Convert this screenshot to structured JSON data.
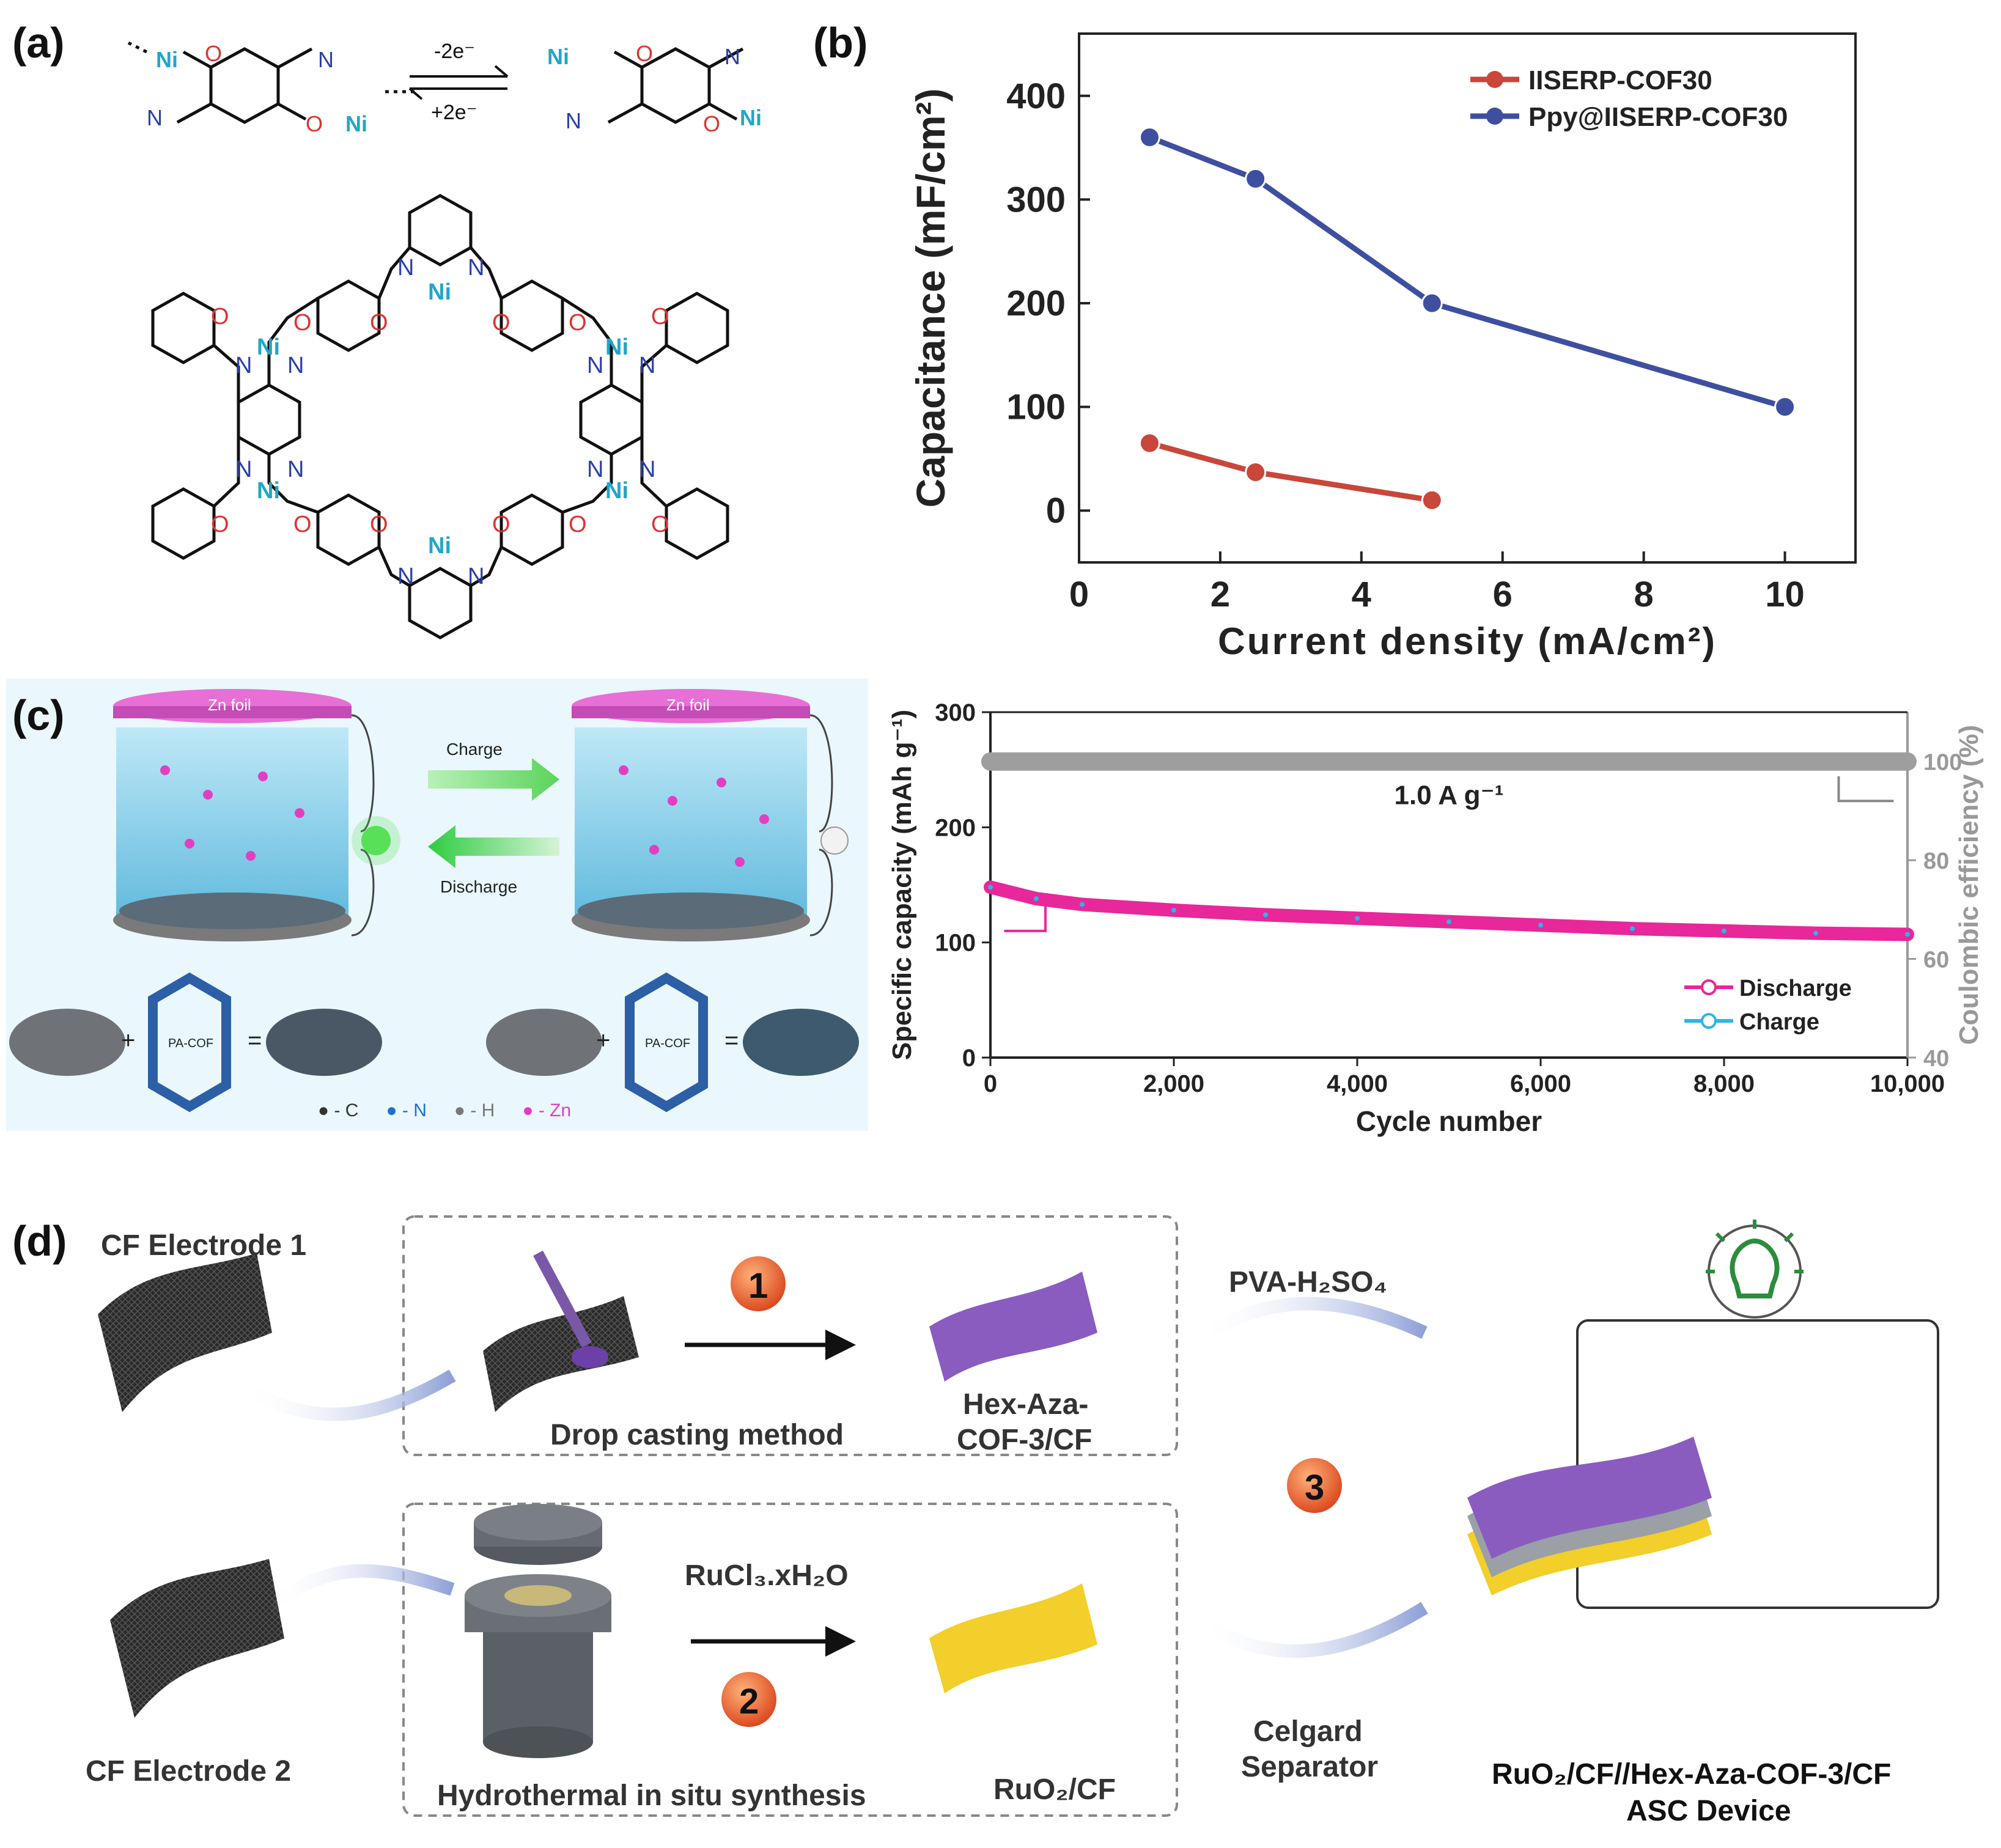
{
  "panels": {
    "a": {
      "label": "(a)",
      "reaction": {
        "forward": "-2e⁻",
        "backward": "+2e⁻"
      },
      "atoms": {
        "ni": "Ni",
        "o": "O",
        "n": "N"
      }
    },
    "b": {
      "label": "(b)"
    },
    "c": {
      "label": "(c)",
      "schematic": {
        "zn_foil": "Zn foil",
        "charge": "Charge",
        "discharge": "Discharge",
        "pa_cof": "PA-COF",
        "legend": [
          "● - C",
          "● - N",
          "● - H",
          "● - Zn"
        ],
        "legend_colors": [
          "#333333",
          "#1f6fd0",
          "#b0b0b0",
          "#e040c0"
        ]
      }
    },
    "d": {
      "label": "(d)",
      "cf_electrode_1": "CF Electrode 1",
      "cf_electrode_2": "CF Electrode 2",
      "step1": "1",
      "step2": "2",
      "step3": "3",
      "drop_casting": "Drop casting method",
      "hydrothermal": "Hydrothermal in situ synthesis",
      "hex_line1": "Hex-Aza-",
      "hex_line2": "COF-3/CF",
      "rucl3": "RuCl₃.xH₂O",
      "ruo2_cf": "RuO₂/CF",
      "pva": "PVA-H₂SO₄",
      "celgard_line1": "Celgard",
      "celgard_line2": "Separator",
      "device_line1": "RuO₂/CF//Hex-Aza-COF-3/CF",
      "device_line2": "ASC Device"
    }
  },
  "chart_data": [
    {
      "type": "line",
      "panel": "b",
      "xlabel": "Current density (mA/cm²)",
      "ylabel": "Capacitance (mF/cm²)",
      "xlim": [
        0,
        11
      ],
      "ylim": [
        -50,
        460
      ],
      "xticks": [
        0,
        2,
        4,
        6,
        8,
        10
      ],
      "yticks": [
        0,
        100,
        200,
        300,
        400
      ],
      "legend_position": "top-right",
      "series": [
        {
          "name": "IISERP-COF30",
          "color": "#c8473a",
          "x": [
            1,
            2.5,
            5
          ],
          "y": [
            65,
            37,
            10
          ]
        },
        {
          "name": "Ppy@IISERP-COF30",
          "color": "#3f4fa0",
          "x": [
            1,
            2.5,
            5,
            10
          ],
          "y": [
            360,
            320,
            200,
            100
          ]
        }
      ]
    },
    {
      "type": "scatter",
      "panel": "c",
      "xlabel": "Cycle number",
      "ylabel": "Specific capacity (mAh g⁻¹)",
      "y2label": "Coulombic efficiency (%)",
      "xlim": [
        0,
        10000
      ],
      "ylim": [
        0,
        300
      ],
      "y2lim": [
        40,
        110
      ],
      "xticks": [
        0,
        2000,
        4000,
        6000,
        8000,
        10000
      ],
      "xtick_labels": [
        "0",
        "2,000",
        "4,000",
        "6,000",
        "8,000",
        "10,000"
      ],
      "yticks": [
        0,
        100,
        200,
        300
      ],
      "y2ticks": [
        40,
        60,
        80,
        100
      ],
      "annotation": "1.0 A g⁻¹",
      "legend_position": "bottom-right",
      "series": [
        {
          "name": "Discharge",
          "color": "#e8279a",
          "x": [
            0,
            500,
            1000,
            2000,
            3000,
            4000,
            5000,
            6000,
            7000,
            8000,
            9000,
            10000
          ],
          "y": [
            148,
            138,
            133,
            128,
            124,
            121,
            118,
            115,
            112,
            110,
            108,
            107
          ]
        },
        {
          "name": "Charge",
          "color": "#2ab5e8",
          "x": [
            0,
            500,
            1000,
            2000,
            3000,
            4000,
            5000,
            6000,
            7000,
            8000,
            9000,
            10000
          ],
          "y": [
            148,
            138,
            133,
            128,
            124,
            121,
            118,
            115,
            112,
            110,
            108,
            107
          ]
        },
        {
          "name": "Coulombic efficiency",
          "color": "#9e9e9e",
          "axis": "y2",
          "x": [
            0,
            2000,
            4000,
            6000,
            8000,
            10000
          ],
          "y": [
            100,
            100,
            100,
            100,
            100,
            100
          ]
        }
      ]
    }
  ]
}
